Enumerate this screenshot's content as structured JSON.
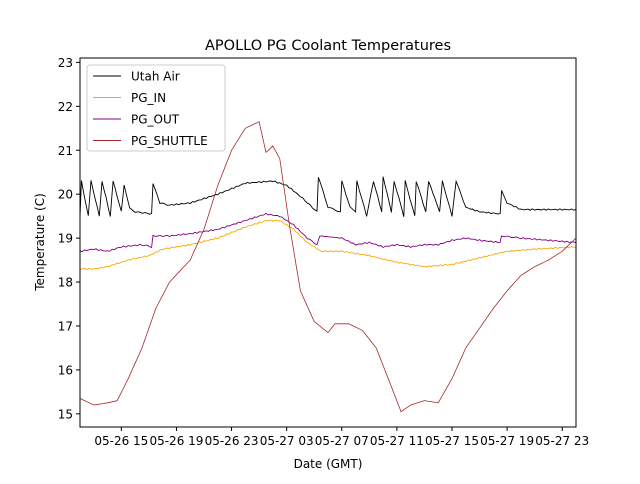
{
  "chart_data": {
    "type": "line",
    "title": "APOLLO PG Coolant Temperatures",
    "xlabel": "Date (GMT)",
    "ylabel": "Temperature (C)",
    "xlim_hours_from_05_26_00": [
      12,
      48
    ],
    "ylim": [
      14.7,
      23.1
    ],
    "xticks": [
      {
        "h": 15,
        "label": "05-26 15"
      },
      {
        "h": 19,
        "label": "05-26 19"
      },
      {
        "h": 23,
        "label": "05-26 23"
      },
      {
        "h": 27,
        "label": "05-27 03"
      },
      {
        "h": 31,
        "label": "05-27 07"
      },
      {
        "h": 35,
        "label": "05-27 11"
      },
      {
        "h": 39,
        "label": "05-27 15"
      },
      {
        "h": 43,
        "label": "05-27 19"
      },
      {
        "h": 47,
        "label": "05-27 23"
      }
    ],
    "yticks": [
      15,
      16,
      17,
      18,
      19,
      20,
      21,
      22,
      23
    ],
    "legend": "upper-left",
    "series": [
      {
        "name": "Utah Air",
        "color": "#000000",
        "points": [
          [
            12,
            19.5
          ],
          [
            12.1,
            20.3
          ],
          [
            12.6,
            19.5
          ],
          [
            12.8,
            20.3
          ],
          [
            13.4,
            19.5
          ],
          [
            13.6,
            20.3
          ],
          [
            14.2,
            19.5
          ],
          [
            14.4,
            20.3
          ],
          [
            15,
            19.6
          ],
          [
            15.2,
            20.2
          ],
          [
            15.6,
            19.7
          ],
          [
            16,
            19.6
          ],
          [
            17.2,
            19.55
          ],
          [
            17.3,
            20.25
          ],
          [
            17.8,
            19.8
          ],
          [
            18.5,
            19.75
          ],
          [
            20,
            19.8
          ],
          [
            22,
            20.0
          ],
          [
            24,
            20.25
          ],
          [
            26,
            20.3
          ],
          [
            27,
            20.2
          ],
          [
            28,
            19.95
          ],
          [
            29.2,
            19.6
          ],
          [
            29.3,
            20.4
          ],
          [
            30,
            19.7
          ],
          [
            30.9,
            19.6
          ],
          [
            31,
            20.3
          ],
          [
            31.6,
            19.7
          ],
          [
            32,
            19.6
          ],
          [
            32.1,
            20.3
          ],
          [
            32.8,
            19.5
          ],
          [
            33.3,
            20.3
          ],
          [
            33.9,
            19.6
          ],
          [
            34,
            20.4
          ],
          [
            34.6,
            19.6
          ],
          [
            34.8,
            20.3
          ],
          [
            35.5,
            19.5
          ],
          [
            35.6,
            20.3
          ],
          [
            36.3,
            19.5
          ],
          [
            36.4,
            20.3
          ],
          [
            37.1,
            19.6
          ],
          [
            37.3,
            20.3
          ],
          [
            38.1,
            19.6
          ],
          [
            38.3,
            20.3
          ],
          [
            39,
            19.5
          ],
          [
            39.3,
            20.3
          ],
          [
            40,
            19.7
          ],
          [
            41,
            19.6
          ],
          [
            42.5,
            19.55
          ],
          [
            42.6,
            20.1
          ],
          [
            43,
            19.8
          ],
          [
            44,
            19.65
          ],
          [
            48,
            19.65
          ]
        ]
      },
      {
        "name": "PG_IN",
        "color": "#ffa500",
        "points": [
          [
            12,
            18.3
          ],
          [
            13,
            18.3
          ],
          [
            14,
            18.35
          ],
          [
            15.5,
            18.5
          ],
          [
            17,
            18.6
          ],
          [
            18,
            18.75
          ],
          [
            20,
            18.85
          ],
          [
            22,
            19.0
          ],
          [
            24,
            19.25
          ],
          [
            25.5,
            19.4
          ],
          [
            26.5,
            19.4
          ],
          [
            27.5,
            19.2
          ],
          [
            28.5,
            18.9
          ],
          [
            29.5,
            18.7
          ],
          [
            31,
            18.7
          ],
          [
            33,
            18.6
          ],
          [
            35,
            18.45
          ],
          [
            37,
            18.35
          ],
          [
            39,
            18.4
          ],
          [
            41,
            18.55
          ],
          [
            43,
            18.7
          ],
          [
            45,
            18.75
          ],
          [
            48,
            18.8
          ]
        ]
      },
      {
        "name": "PG_OUT",
        "color": "#800080",
        "points": [
          [
            12,
            18.7
          ],
          [
            13,
            18.75
          ],
          [
            14,
            18.7
          ],
          [
            15,
            18.8
          ],
          [
            16.5,
            18.85
          ],
          [
            17.2,
            18.8
          ],
          [
            17.3,
            19.05
          ],
          [
            18.5,
            19.05
          ],
          [
            20,
            19.1
          ],
          [
            22,
            19.2
          ],
          [
            24,
            19.4
          ],
          [
            25.5,
            19.55
          ],
          [
            26.5,
            19.5
          ],
          [
            27.5,
            19.3
          ],
          [
            28.5,
            19.0
          ],
          [
            29.2,
            18.85
          ],
          [
            29.4,
            19.05
          ],
          [
            31,
            19.0
          ],
          [
            32,
            18.85
          ],
          [
            33,
            18.9
          ],
          [
            34,
            18.8
          ],
          [
            35,
            18.85
          ],
          [
            36,
            18.8
          ],
          [
            37,
            18.85
          ],
          [
            38,
            18.85
          ],
          [
            39,
            18.95
          ],
          [
            40,
            19.0
          ],
          [
            41,
            18.95
          ],
          [
            42.5,
            18.9
          ],
          [
            42.6,
            19.05
          ],
          [
            44,
            19.0
          ],
          [
            46,
            18.95
          ],
          [
            48,
            18.9
          ]
        ]
      },
      {
        "name": "PG_SHUTTLE",
        "color": "#a52a2a",
        "points": [
          [
            12,
            15.35
          ],
          [
            13,
            15.2
          ],
          [
            14,
            15.25
          ],
          [
            14.7,
            15.3
          ],
          [
            15.5,
            15.8
          ],
          [
            16.5,
            16.5
          ],
          [
            17.5,
            17.4
          ],
          [
            18.5,
            18.0
          ],
          [
            20,
            18.5
          ],
          [
            21,
            19.2
          ],
          [
            22,
            20.2
          ],
          [
            23,
            21.0
          ],
          [
            24,
            21.5
          ],
          [
            25,
            21.65
          ],
          [
            25.5,
            20.95
          ],
          [
            26,
            21.1
          ],
          [
            26.5,
            20.8
          ],
          [
            27.2,
            19.3
          ],
          [
            28,
            17.8
          ],
          [
            29,
            17.1
          ],
          [
            30,
            16.85
          ],
          [
            30.5,
            17.05
          ],
          [
            31.5,
            17.05
          ],
          [
            32.5,
            16.9
          ],
          [
            33.5,
            16.5
          ],
          [
            34.5,
            15.7
          ],
          [
            35.3,
            15.05
          ],
          [
            36,
            15.2
          ],
          [
            37,
            15.3
          ],
          [
            38,
            15.25
          ],
          [
            39,
            15.8
          ],
          [
            40,
            16.5
          ],
          [
            41,
            16.95
          ],
          [
            42,
            17.4
          ],
          [
            43,
            17.8
          ],
          [
            44,
            18.15
          ],
          [
            45,
            18.35
          ],
          [
            46,
            18.5
          ],
          [
            47,
            18.7
          ],
          [
            48,
            19.0
          ]
        ]
      }
    ]
  }
}
